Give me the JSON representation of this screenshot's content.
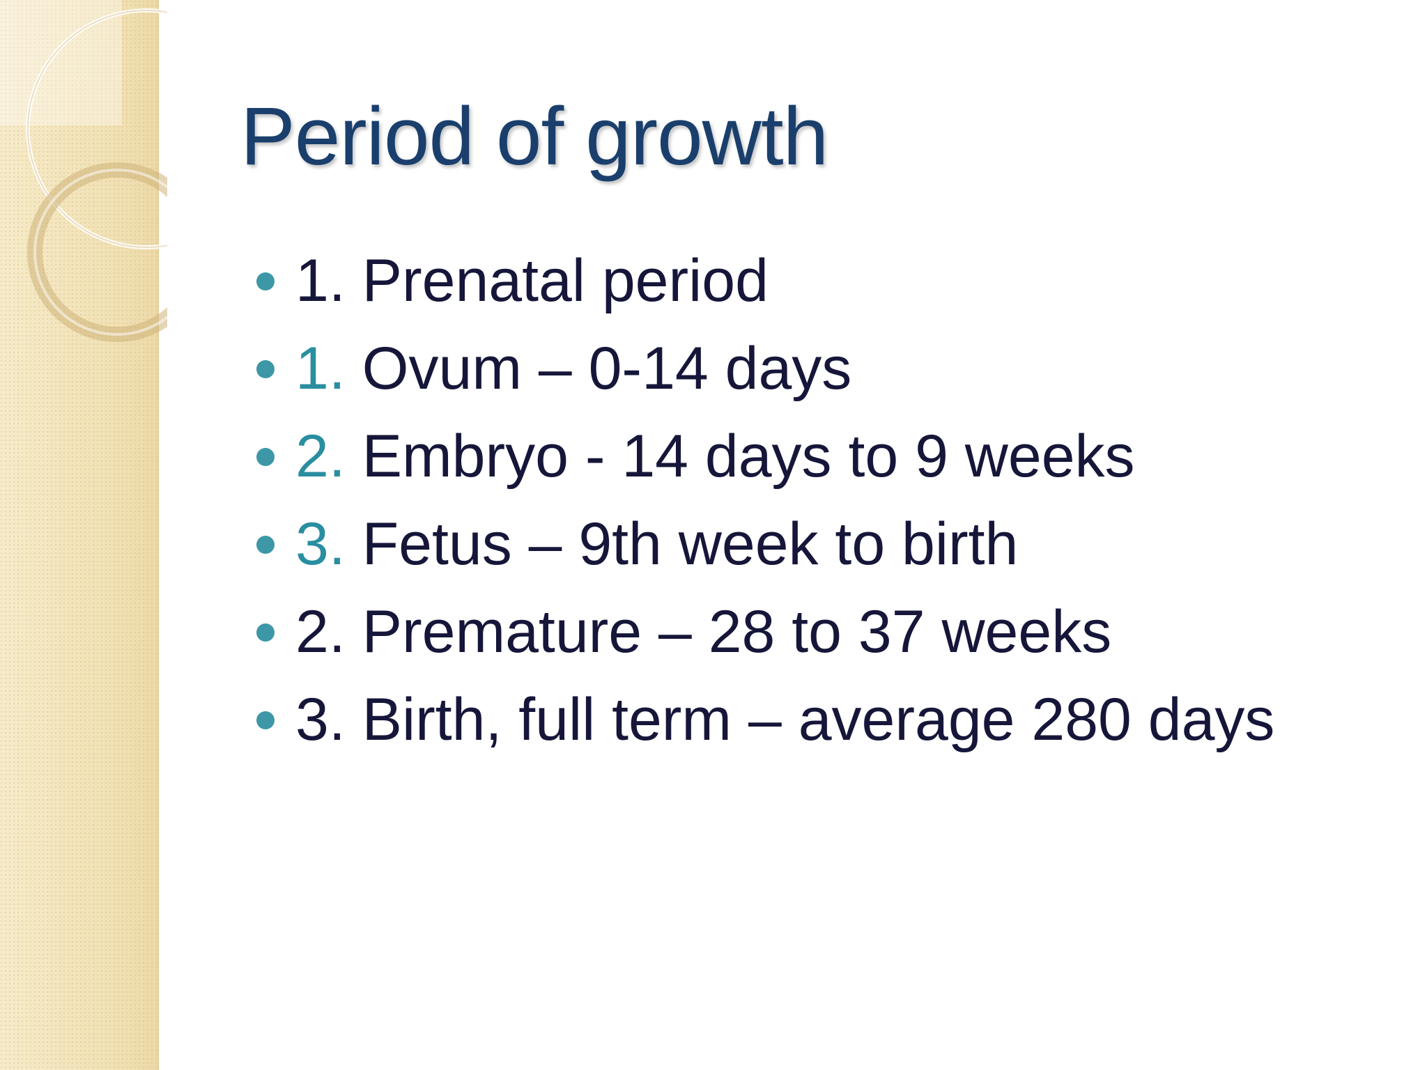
{
  "slide": {
    "title": "Period of growth",
    "bullets": [
      {
        "number": "1.",
        "text": " Prenatal period",
        "number_style": "plain"
      },
      {
        "number": "1.",
        "text": " Ovum – 0-14 days",
        "number_style": "accent"
      },
      {
        "number": "2.",
        "text": " Embryo - 14 days to 9 weeks",
        "number_style": "accent"
      },
      {
        "number": "3.",
        "text": " Fetus – 9th week to birth",
        "number_style": "accent"
      },
      {
        "number": "2.",
        "text": " Premature – 28 to 37 weeks",
        "number_style": "plain"
      },
      {
        "number": "3.",
        "text": " Birth, full term – average 280 days",
        "number_style": "plain"
      }
    ]
  },
  "colors": {
    "title": "#1a3f6c",
    "text": "#16163a",
    "accent": "#2a8ea1",
    "bullet": "#3d97a6",
    "side_panel": "#f3e5bd"
  }
}
